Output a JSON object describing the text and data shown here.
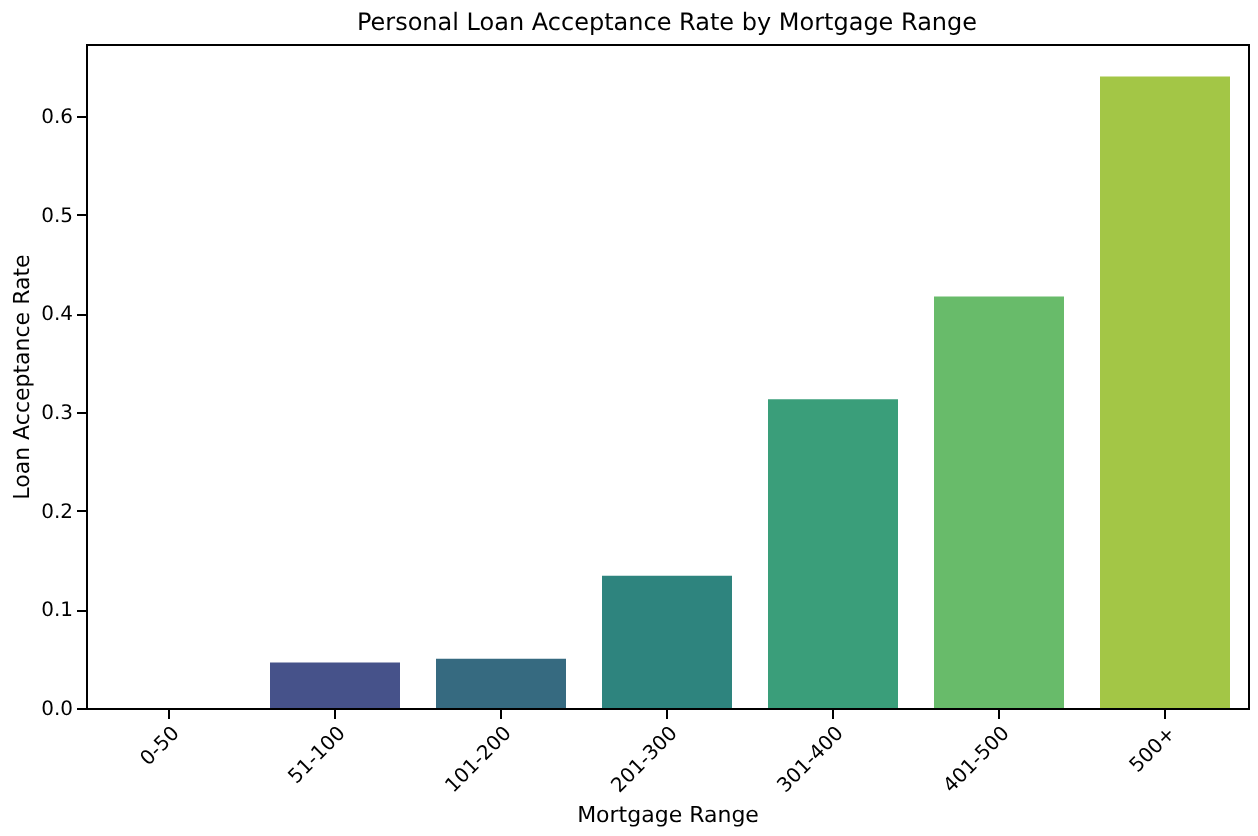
{
  "chart_data": {
    "type": "bar",
    "title": "Personal Loan Acceptance Rate by Mortgage Range",
    "xlabel": "Mortgage Range",
    "ylabel": "Loan Acceptance Rate",
    "categories": [
      "0-50",
      "51-100",
      "101-200",
      "201-300",
      "301-400",
      "401-500",
      "500+"
    ],
    "values": [
      0.0,
      0.046,
      0.05,
      0.134,
      0.313,
      0.417,
      0.64
    ],
    "colors": [
      "#4a2f73",
      "#46528a",
      "#366a80",
      "#2e847e",
      "#3a9e7a",
      "#68bb6a",
      "#a3c646"
    ],
    "ylim": [
      0,
      0.673
    ],
    "yticks": [
      {
        "value": 0,
        "label": "0.0"
      },
      0.1,
      0.2,
      0.3,
      0.4,
      0.5,
      0.6
    ],
    "grid": false
  }
}
